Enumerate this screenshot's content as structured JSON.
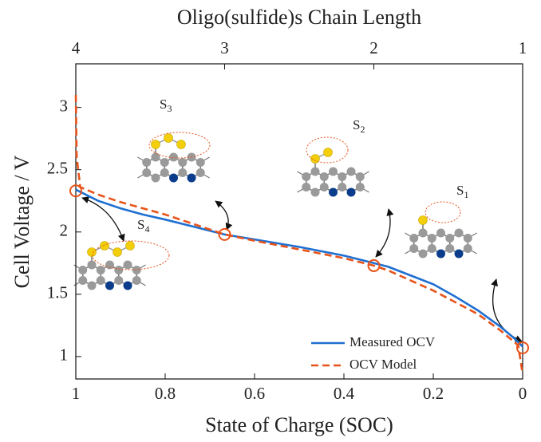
{
  "chart_data": {
    "type": "line",
    "title": "Oligo(sulfide)s Chain Length",
    "x_label": "State of Charge (SOC)",
    "y_label": "Cell Voltage / V",
    "xlim": [
      1,
      0
    ],
    "ylim": [
      0.82,
      3.35
    ],
    "xticks": [
      1,
      0.8,
      0.6,
      0.4,
      0.2,
      0
    ],
    "x2ticks": [
      {
        "value": 1,
        "label": "4"
      },
      {
        "value": 0.667,
        "label": "3"
      },
      {
        "value": 0.333,
        "label": "2"
      },
      {
        "value": 0,
        "label": "1"
      }
    ],
    "yticks": [
      1,
      1.5,
      2,
      2.5,
      3
    ],
    "legend": "lower right",
    "series": [
      {
        "name": "Measured OCV",
        "color": "#1f6fd0",
        "dash": false,
        "x": [
          1,
          0.95,
          0.9,
          0.85,
          0.8,
          0.7,
          0.667,
          0.6,
          0.5,
          0.4,
          0.333,
          0.3,
          0.2,
          0.15,
          0.1,
          0.05,
          0.02,
          0
        ],
        "values": [
          2.34,
          2.25,
          2.19,
          2.14,
          2.1,
          2.01,
          1.98,
          1.94,
          1.88,
          1.81,
          1.75,
          1.72,
          1.58,
          1.48,
          1.37,
          1.24,
          1.15,
          1.08
        ]
      },
      {
        "name": "OCV Model",
        "color": "#e8531a",
        "dash": true,
        "x": [
          1,
          0.998,
          0.99,
          0.95,
          0.9,
          0.8,
          0.7,
          0.667,
          0.6,
          0.5,
          0.4,
          0.333,
          0.3,
          0.2,
          0.1,
          0.05,
          0.01,
          0
        ],
        "values": [
          3.1,
          2.6,
          2.36,
          2.3,
          2.24,
          2.14,
          2.02,
          1.98,
          1.93,
          1.86,
          1.79,
          1.73,
          1.69,
          1.53,
          1.34,
          1.21,
          1.09,
          0.86
        ]
      }
    ],
    "key_points": {
      "color": "#e8531a",
      "x": [
        1,
        0.667,
        0.333,
        0
      ],
      "values": [
        2.33,
        1.98,
        1.73,
        1.07
      ]
    },
    "molecule_labels": [
      {
        "base": "S",
        "sub": "4"
      },
      {
        "base": "S",
        "sub": "3"
      },
      {
        "base": "S",
        "sub": "2"
      },
      {
        "base": "S",
        "sub": "1"
      }
    ]
  }
}
